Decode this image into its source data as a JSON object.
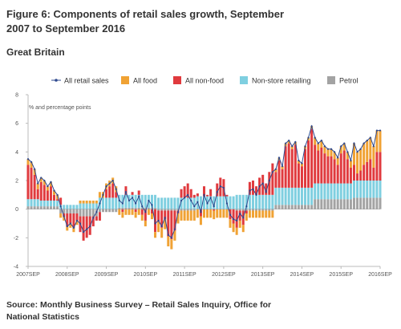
{
  "chart_data": {
    "type": "bar",
    "title_lines": [
      "Figure 6: Components of retail sales growth, September",
      "2007 to September 2016"
    ],
    "subtitle": "Great Britain",
    "y_label": "% and percentage points",
    "source_lines": [
      "Source: Monthly Business Survey – Retail Sales Inquiry, Office for",
      "National Statistics"
    ],
    "categories": [
      "2007SEP",
      null,
      null,
      null,
      null,
      null,
      null,
      null,
      null,
      null,
      null,
      null,
      "2008SEP",
      null,
      null,
      null,
      null,
      null,
      null,
      null,
      null,
      null,
      null,
      null,
      "2009SEP",
      null,
      null,
      null,
      null,
      null,
      null,
      null,
      null,
      null,
      null,
      null,
      "2010SEP",
      null,
      null,
      null,
      null,
      null,
      null,
      null,
      null,
      null,
      null,
      null,
      "2011SEP",
      null,
      null,
      null,
      null,
      null,
      null,
      null,
      null,
      null,
      null,
      null,
      "2012SEP",
      null,
      null,
      null,
      null,
      null,
      null,
      null,
      null,
      null,
      null,
      null,
      "2013SEP",
      null,
      null,
      null,
      null,
      null,
      null,
      null,
      null,
      null,
      null,
      null,
      "2014SEP",
      null,
      null,
      null,
      null,
      null,
      null,
      null,
      null,
      null,
      null,
      null,
      "2015SEP",
      null,
      null,
      null,
      null,
      null,
      null,
      null,
      null,
      null,
      null,
      null,
      "2016SEP"
    ],
    "ylim": [
      -4,
      8
    ],
    "yticks": [
      -4,
      -2,
      0,
      2,
      4,
      6,
      8
    ],
    "grid": false,
    "stacked": true,
    "series": [
      {
        "name": "All retail sales",
        "type": "line",
        "color": "#2f4a8f",
        "values": [
          3.5,
          3.3,
          2.8,
          1.8,
          2.2,
          2.0,
          1.6,
          1.9,
          1.3,
          1.0,
          0.2,
          -0.5,
          -1.2,
          -1.0,
          -1.3,
          -0.8,
          -1.0,
          -1.6,
          -1.4,
          -1.2,
          -0.6,
          -0.2,
          0.4,
          1.0,
          1.6,
          1.8,
          2.0,
          1.4,
          0.6,
          0.4,
          1.2,
          0.6,
          0.8,
          0.4,
          0.9,
          0.2,
          -0.2,
          0.6,
          0.3,
          -1.0,
          -0.8,
          -1.2,
          -0.6,
          -1.8,
          -2.0,
          -1.4,
          -0.2,
          0.6,
          0.8,
          1.0,
          0.6,
          0.2,
          0.5,
          -0.2,
          1.0,
          0.4,
          0.8,
          0.2,
          1.2,
          1.6,
          1.5,
          0.4,
          -0.4,
          -0.7,
          -0.8,
          -0.3,
          -0.6,
          0.2,
          1.3,
          1.4,
          1.0,
          1.6,
          1.8,
          1.2,
          2.0,
          2.6,
          2.8,
          3.6,
          3.0,
          4.6,
          4.8,
          4.4,
          4.7,
          3.4,
          3.2,
          4.4,
          5.0,
          5.8,
          5.0,
          4.6,
          4.8,
          4.4,
          4.2,
          4.2,
          4.0,
          3.6,
          4.4,
          4.6,
          4.0,
          3.4,
          4.6,
          4.0,
          4.2,
          4.6,
          4.8,
          5.0,
          4.4,
          5.5,
          5.5
        ]
      },
      {
        "name": "All food",
        "type": "bar",
        "color": "#f0a234",
        "values": [
          0.4,
          0.4,
          0.4,
          0.4,
          0.3,
          0.3,
          0.3,
          0.3,
          0.3,
          0.3,
          -0.3,
          -0.3,
          -0.3,
          -0.3,
          -0.3,
          -0.3,
          0.2,
          0.2,
          0.2,
          0.2,
          0.2,
          0.2,
          0.4,
          0.4,
          0.4,
          0.4,
          0.4,
          0.4,
          -0.4,
          -0.4,
          -0.4,
          -0.4,
          -0.4,
          -0.4,
          -0.4,
          -0.4,
          -0.4,
          -0.4,
          -0.4,
          -0.4,
          -0.7,
          -0.7,
          -0.7,
          -0.7,
          -0.7,
          -0.7,
          -0.7,
          -0.7,
          -0.7,
          -0.7,
          -0.7,
          -0.7,
          -0.6,
          -0.6,
          -0.6,
          -0.6,
          -0.6,
          -0.6,
          -0.6,
          -0.6,
          -0.6,
          -0.6,
          -0.6,
          -0.6,
          -0.5,
          -0.5,
          -0.5,
          -0.5,
          -0.5,
          -0.5,
          -0.5,
          -0.5,
          -0.5,
          -0.5,
          -0.5,
          -0.5,
          0.2,
          0.2,
          0.2,
          0.2,
          0.2,
          0.2,
          0.2,
          0.2,
          0.2,
          0.2,
          0.2,
          0.2,
          0.5,
          0.5,
          0.5,
          0.5,
          0.5,
          0.5,
          0.5,
          0.5,
          0.5,
          0.5,
          0.5,
          0.5,
          1.5,
          1.5,
          1.5,
          1.5,
          1.5,
          1.5,
          1.5,
          1.5,
          1.5
        ]
      },
      {
        "name": "All non-food",
        "type": "bar",
        "color": "#e03a3e",
        "values": [
          2.4,
          2.2,
          1.7,
          0.7,
          1.3,
          1.1,
          0.7,
          1.0,
          0.4,
          0.1,
          0.5,
          -0.2,
          -0.9,
          -0.7,
          -1.0,
          -0.5,
          -1.1,
          -1.7,
          -1.5,
          -1.3,
          -0.7,
          -0.3,
          -0.6,
          0.0,
          0.6,
          0.8,
          1.0,
          0.4,
          0.0,
          -0.2,
          0.6,
          0.0,
          0.2,
          -0.2,
          0.3,
          -0.4,
          -0.8,
          0.0,
          -0.3,
          -1.6,
          -0.8,
          -1.2,
          -0.6,
          -1.8,
          -2.0,
          -1.4,
          -0.2,
          0.6,
          0.8,
          1.0,
          0.6,
          0.2,
          0.2,
          -0.5,
          0.7,
          0.1,
          0.5,
          -0.1,
          0.9,
          1.3,
          1.2,
          0.1,
          -0.7,
          -1.0,
          -1.2,
          -0.7,
          -1.0,
          -0.2,
          0.9,
          1.0,
          0.6,
          1.2,
          1.4,
          0.8,
          1.6,
          2.2,
          1.1,
          1.9,
          1.3,
          2.9,
          3.1,
          2.7,
          3.0,
          1.7,
          1.5,
          2.7,
          3.3,
          4.1,
          2.7,
          2.3,
          2.5,
          2.1,
          1.9,
          1.9,
          1.7,
          1.3,
          2.1,
          2.3,
          1.7,
          1.1,
          1.1,
          0.5,
          0.7,
          1.1,
          1.3,
          1.5,
          0.9,
          2.0,
          2.0
        ]
      },
      {
        "name": "Non-store retailing",
        "type": "bar",
        "color": "#7fcfe0",
        "values": [
          0.5,
          0.5,
          0.5,
          0.5,
          0.4,
          0.4,
          0.4,
          0.4,
          0.4,
          0.4,
          0.3,
          0.3,
          0.3,
          0.3,
          0.3,
          0.3,
          0.4,
          0.4,
          0.4,
          0.4,
          0.4,
          0.4,
          0.8,
          0.8,
          0.8,
          0.8,
          0.8,
          0.8,
          0.9,
          0.9,
          0.9,
          0.9,
          0.9,
          0.9,
          0.9,
          0.9,
          0.9,
          0.9,
          0.9,
          0.9,
          0.8,
          0.8,
          0.8,
          0.8,
          0.8,
          0.8,
          0.8,
          0.8,
          0.8,
          0.8,
          0.8,
          0.8,
          0.9,
          0.9,
          0.9,
          0.9,
          0.9,
          0.9,
          0.9,
          0.9,
          0.9,
          0.9,
          0.9,
          0.9,
          1.0,
          1.0,
          1.0,
          1.0,
          1.0,
          1.0,
          1.0,
          1.0,
          1.0,
          1.0,
          1.0,
          1.0,
          1.2,
          1.2,
          1.2,
          1.2,
          1.2,
          1.2,
          1.2,
          1.2,
          1.2,
          1.2,
          1.2,
          1.2,
          1.1,
          1.1,
          1.1,
          1.1,
          1.1,
          1.1,
          1.1,
          1.1,
          1.1,
          1.1,
          1.1,
          1.1,
          1.2,
          1.2,
          1.2,
          1.2,
          1.2,
          1.2,
          1.2,
          1.2,
          1.2
        ]
      },
      {
        "name": "Petrol",
        "type": "bar",
        "color": "#a3a3a3",
        "values": [
          0.2,
          0.2,
          0.2,
          0.2,
          0.2,
          0.2,
          0.2,
          0.2,
          0.2,
          0.2,
          -0.3,
          -0.3,
          -0.3,
          -0.3,
          -0.3,
          -0.3,
          -0.5,
          -0.5,
          -0.5,
          -0.5,
          -0.5,
          -0.5,
          -0.2,
          -0.2,
          -0.2,
          -0.2,
          -0.2,
          -0.2,
          0.1,
          0.1,
          0.1,
          0.1,
          0.1,
          0.1,
          0.1,
          0.1,
          0.1,
          0.1,
          0.1,
          0.1,
          -0.1,
          -0.1,
          -0.1,
          -0.1,
          -0.1,
          -0.1,
          -0.1,
          -0.1,
          -0.1,
          -0.1,
          -0.1,
          -0.1,
          0.0,
          0.0,
          0.0,
          0.0,
          0.0,
          0.0,
          0.0,
          0.0,
          0.0,
          0.0,
          0.0,
          0.0,
          -0.1,
          -0.1,
          -0.1,
          -0.1,
          -0.1,
          -0.1,
          -0.1,
          -0.1,
          -0.1,
          -0.1,
          -0.1,
          -0.1,
          0.3,
          0.3,
          0.3,
          0.3,
          0.3,
          0.3,
          0.3,
          0.3,
          0.3,
          0.3,
          0.3,
          0.3,
          0.7,
          0.7,
          0.7,
          0.7,
          0.7,
          0.7,
          0.7,
          0.7,
          0.7,
          0.7,
          0.7,
          0.7,
          0.8,
          0.8,
          0.8,
          0.8,
          0.8,
          0.8,
          0.8,
          0.8,
          0.8
        ]
      }
    ]
  }
}
